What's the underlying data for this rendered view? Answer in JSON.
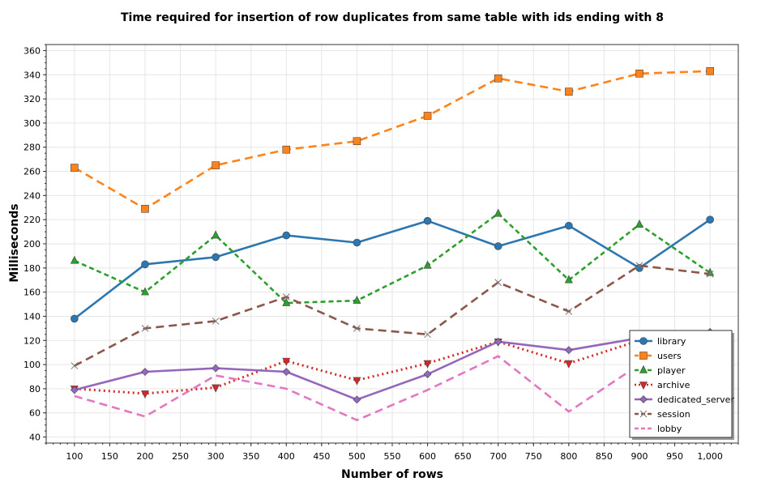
{
  "chart_data": {
    "type": "line",
    "title": "Time required for insertion of row duplicates from same table with ids ending with 8",
    "xlabel": "Number of rows",
    "ylabel": "Milliseconds",
    "x": [
      100,
      200,
      300,
      400,
      500,
      600,
      700,
      800,
      900,
      1000
    ],
    "xlim": [
      60,
      1040
    ],
    "ylim": [
      35,
      365
    ],
    "x_ticks": [
      100,
      150,
      200,
      250,
      300,
      350,
      400,
      450,
      500,
      550,
      600,
      650,
      700,
      750,
      800,
      850,
      900,
      950,
      1000
    ],
    "x_tick_labels": [
      "100",
      "150",
      "200",
      "250",
      "300",
      "350",
      "400",
      "450",
      "500",
      "550",
      "600",
      "650",
      "700",
      "750",
      "800",
      "850",
      "900",
      "950",
      "1,000"
    ],
    "y_ticks": [
      40,
      60,
      80,
      100,
      120,
      140,
      160,
      180,
      200,
      220,
      240,
      260,
      280,
      300,
      320,
      340,
      360
    ],
    "y_tick_labels": [
      "40",
      "60",
      "80",
      "100",
      "120",
      "140",
      "160",
      "180",
      "200",
      "220",
      "240",
      "260",
      "280",
      "300",
      "320",
      "340",
      "360"
    ],
    "grid": true,
    "legend_position": "bottom-right",
    "series": [
      {
        "name": "library",
        "color": "#2c77b1",
        "dash": "solid",
        "marker": "circle",
        "values": [
          138,
          183,
          189,
          207,
          201,
          219,
          198,
          215,
          180,
          220
        ]
      },
      {
        "name": "users",
        "color": "#ff8318",
        "dash": "dash",
        "marker": "square",
        "values": [
          263,
          229,
          265,
          278,
          285,
          306,
          337,
          326,
          341,
          343
        ]
      },
      {
        "name": "player",
        "color": "#2ca02c",
        "dash": "shortdash",
        "marker": "triangle-up",
        "values": [
          186,
          160,
          207,
          151,
          153,
          182,
          225,
          170,
          216,
          176
        ]
      },
      {
        "name": "archive",
        "color": "#d62728",
        "dash": "dot",
        "marker": "triangle-down",
        "values": [
          80,
          76,
          81,
          103,
          87,
          101,
          119,
          101,
          120,
          122
        ]
      },
      {
        "name": "dedicated_server",
        "color": "#9467bd",
        "dash": "solid",
        "marker": "diamond",
        "values": [
          79,
          94,
          97,
          94,
          71,
          92,
          119,
          112,
          122,
          127
        ]
      },
      {
        "name": "session",
        "color": "#8c564b",
        "dash": "dash",
        "marker": "x",
        "values": [
          99,
          130,
          136,
          156,
          130,
          125,
          168,
          144,
          182,
          175
        ]
      },
      {
        "name": "lobby",
        "color": "#e377c2",
        "dash": "dash",
        "marker": "none",
        "values": [
          74,
          57,
          91,
          80,
          54,
          79,
          107,
          61,
          100,
          117
        ]
      }
    ]
  }
}
